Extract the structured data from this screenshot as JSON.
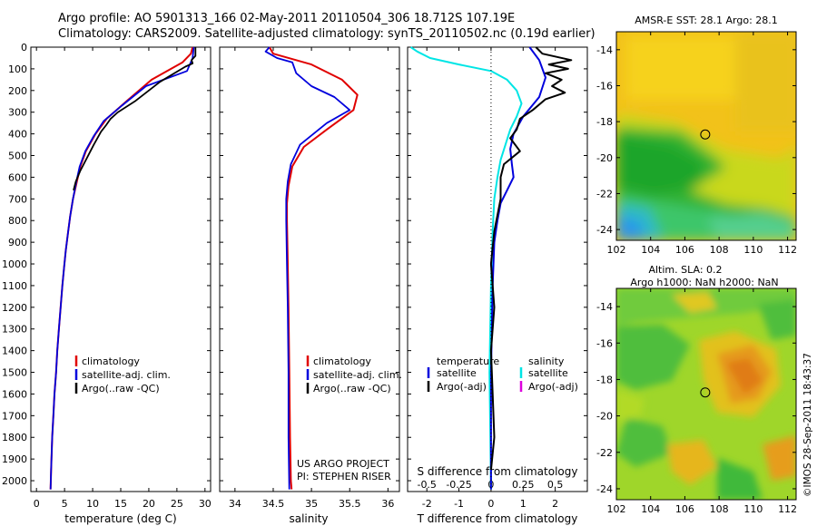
{
  "title_line1": "Argo profile: AO 5901313_166 02-May-2011 20110504_306 18.712S 107.19E",
  "title_line2": "Climatology: CARS2009. Satellite-adjusted climatology: synTS_20110502.nc (0.19d earlier)",
  "credit": "©IMOS 28-Sep-2011 18:43:37",
  "colors": {
    "climatology": "#e00000",
    "satellite": "#0000dd",
    "argo": "#000000",
    "salinity_sat": "#00e5e5",
    "salinity_argo": "#dd00dd"
  },
  "chart_data": [
    {
      "type": "line",
      "name": "temperature-panel",
      "xlabel": "temperature (deg C)",
      "ylim": [
        2050,
        0
      ],
      "xlim": [
        -1,
        31
      ],
      "xticks": [
        0,
        5,
        10,
        15,
        20,
        25,
        30
      ],
      "yticks": [
        0,
        100,
        200,
        300,
        400,
        500,
        600,
        700,
        800,
        900,
        1000,
        1100,
        1200,
        1300,
        1400,
        1500,
        1600,
        1700,
        1800,
        1900,
        2000
      ],
      "legend": [
        "climatology",
        "satellite-adj. clim.",
        "Argo(..raw -QC)"
      ],
      "series": [
        {
          "key": "clim",
          "x": [
            27.8,
            27.5,
            26.0,
            20.5,
            16.0,
            12.5,
            10.5,
            8.8,
            7.8,
            7.2,
            6.5,
            6.0,
            5.6,
            5.2,
            4.9,
            4.6,
            4.3,
            4.0,
            3.7,
            3.5,
            3.2,
            3.0,
            2.8,
            2.6,
            2.5
          ],
          "y": [
            0,
            30,
            70,
            150,
            250,
            330,
            400,
            480,
            550,
            620,
            700,
            780,
            860,
            940,
            1020,
            1100,
            1200,
            1300,
            1400,
            1500,
            1600,
            1700,
            1800,
            1950,
            2040
          ]
        },
        {
          "key": "sat",
          "x": [
            28.0,
            27.8,
            26.8,
            19.5,
            15.2,
            12.0,
            10.2,
            8.7,
            7.7,
            7.1,
            6.5,
            6.0,
            5.6,
            5.2,
            4.9,
            4.6,
            4.3,
            4.0,
            3.7,
            3.5,
            3.2,
            3.0,
            2.8,
            2.6,
            2.5
          ],
          "y": [
            0,
            50,
            110,
            180,
            270,
            340,
            410,
            480,
            550,
            620,
            700,
            780,
            860,
            940,
            1020,
            1100,
            1200,
            1300,
            1400,
            1500,
            1600,
            1700,
            1800,
            1950,
            2040
          ]
        },
        {
          "key": "argo",
          "x": [
            28.3,
            28.3,
            27.6,
            27.8,
            26.5,
            22.0,
            17.5,
            14.5,
            13.2,
            12.4,
            11.5,
            10.2,
            9.0,
            7.8,
            7.0,
            6.6
          ],
          "y": [
            0,
            40,
            60,
            75,
            90,
            160,
            250,
            300,
            330,
            360,
            390,
            450,
            510,
            570,
            620,
            660
          ]
        }
      ]
    },
    {
      "type": "line",
      "name": "salinity-panel",
      "xlabel": "salinity",
      "ylim": [
        2050,
        0
      ],
      "xlim": [
        33.8,
        36.15
      ],
      "xticks": [
        34,
        34.5,
        35,
        35.5,
        36
      ],
      "legend": [
        "climatology",
        "satellite-adj. clim.",
        "Argo(..raw -QC)"
      ],
      "annotation": [
        "US ARGO PROJECT",
        "PI: STEPHEN RISER"
      ],
      "series": [
        {
          "key": "clim",
          "x": [
            34.45,
            34.5,
            35.0,
            35.4,
            35.6,
            35.55,
            35.2,
            34.9,
            34.75,
            34.7,
            34.68,
            34.68,
            34.69,
            34.7,
            34.71,
            34.72,
            34.73,
            34.74
          ],
          "y": [
            0,
            30,
            80,
            150,
            220,
            290,
            380,
            460,
            550,
            640,
            720,
            800,
            1000,
            1200,
            1500,
            1800,
            2000,
            2040
          ]
        },
        {
          "key": "sat",
          "x": [
            34.45,
            34.4,
            34.55,
            34.75,
            34.8,
            35.0,
            35.3,
            35.5,
            35.2,
            34.85,
            34.73,
            34.69,
            34.67,
            34.67,
            34.68,
            34.69,
            34.7,
            34.7,
            34.71
          ],
          "y": [
            0,
            20,
            50,
            70,
            120,
            180,
            230,
            290,
            350,
            450,
            540,
            620,
            700,
            800,
            1000,
            1200,
            1500,
            1800,
            2040
          ]
        }
      ]
    },
    {
      "type": "line",
      "name": "difference-panel",
      "xlabel": "T difference from climatology",
      "xlabel_top": "S difference from climatology",
      "xlim": [
        -2.6,
        3.0
      ],
      "xticks_T": [
        -2,
        -1,
        0,
        1,
        2
      ],
      "xticks_S_labels": [
        "-0.5",
        "-0.25",
        "0",
        "0.25",
        "0.5"
      ],
      "xticks_S_pos": [
        -2,
        -1,
        0,
        1,
        2
      ],
      "legend_temperature_title": "temperature",
      "legend_salinity_title": "salinity",
      "legend_satellite": "satellite",
      "legend_argo": "Argo(-adj)",
      "series": [
        {
          "key": "s_sat",
          "x": [
            -2.5,
            -2.3,
            -1.9,
            -1.0,
            0.0,
            0.5,
            0.8,
            0.95,
            0.8,
            0.6,
            0.45,
            0.3,
            0.2,
            0.1,
            0.05,
            0.0,
            -0.05,
            -0.02,
            0.0
          ],
          "y": [
            0,
            20,
            50,
            80,
            110,
            150,
            200,
            260,
            320,
            380,
            450,
            520,
            600,
            700,
            850,
            1100,
            1500,
            1800,
            2040
          ]
        },
        {
          "key": "t_sat",
          "x": [
            1.2,
            1.5,
            1.7,
            1.5,
            1.0,
            0.7,
            0.6,
            0.65,
            0.7,
            0.5,
            0.3,
            0.2,
            0.1,
            0.05,
            0.0,
            0.0
          ],
          "y": [
            0,
            60,
            140,
            230,
            320,
            400,
            470,
            540,
            600,
            660,
            720,
            800,
            900,
            1100,
            1500,
            2040
          ]
        },
        {
          "key": "t_argo",
          "x": [
            1.4,
            1.6,
            2.5,
            1.8,
            2.4,
            1.7,
            2.2,
            1.9,
            2.3,
            1.7,
            1.3,
            0.9,
            0.8,
            0.6,
            0.9,
            0.4,
            0.3,
            0.3,
            0.1,
            0.0,
            0.1,
            0.0,
            0.05,
            0.1,
            0.0
          ],
          "y": [
            0,
            30,
            60,
            80,
            100,
            120,
            150,
            180,
            210,
            240,
            290,
            330,
            380,
            420,
            480,
            540,
            600,
            700,
            850,
            1000,
            1200,
            1400,
            1600,
            1800,
            1950
          ]
        }
      ]
    },
    {
      "type": "heatmap",
      "name": "sst-map",
      "title": "AMSR-E SST: 28.1  Argo: 28.1",
      "xlim": [
        102,
        112.5
      ],
      "ylim": [
        -24.6,
        -13.0
      ],
      "xticks": [
        102,
        104,
        106,
        108,
        110,
        112
      ],
      "yticks": [
        -14,
        -16,
        -18,
        -20,
        -22,
        -24
      ],
      "argo_position": {
        "lon": 107.19,
        "lat": -18.712
      }
    },
    {
      "type": "heatmap",
      "name": "sla-map",
      "title_line1": "Altim. SLA: 0.2",
      "title_line2": "Argo h1000: NaN h2000: NaN",
      "xlim": [
        102,
        112.5
      ],
      "ylim": [
        -24.6,
        -13.0
      ],
      "xticks": [
        102,
        104,
        106,
        108,
        110,
        112
      ],
      "yticks": [
        -14,
        -16,
        -18,
        -20,
        -22,
        -24
      ],
      "argo_position": {
        "lon": 107.19,
        "lat": -18.712
      }
    }
  ]
}
